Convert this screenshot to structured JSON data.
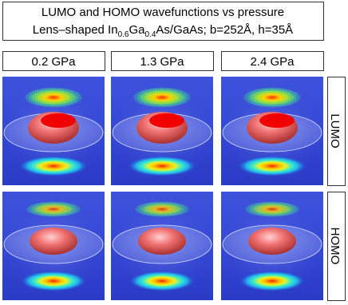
{
  "title": {
    "line1": "LUMO and HOMO wavefunctions vs pressure",
    "line2": [
      "Lens–shaped In",
      "0.6",
      "Ga",
      "0.4",
      "As/GaAs; b=252Å, h=35Å"
    ]
  },
  "columns": [
    "0.2 GPa",
    "1.3 GPa",
    "2.4 GPa"
  ],
  "rows": [
    "LUMO",
    "HOMO"
  ]
}
